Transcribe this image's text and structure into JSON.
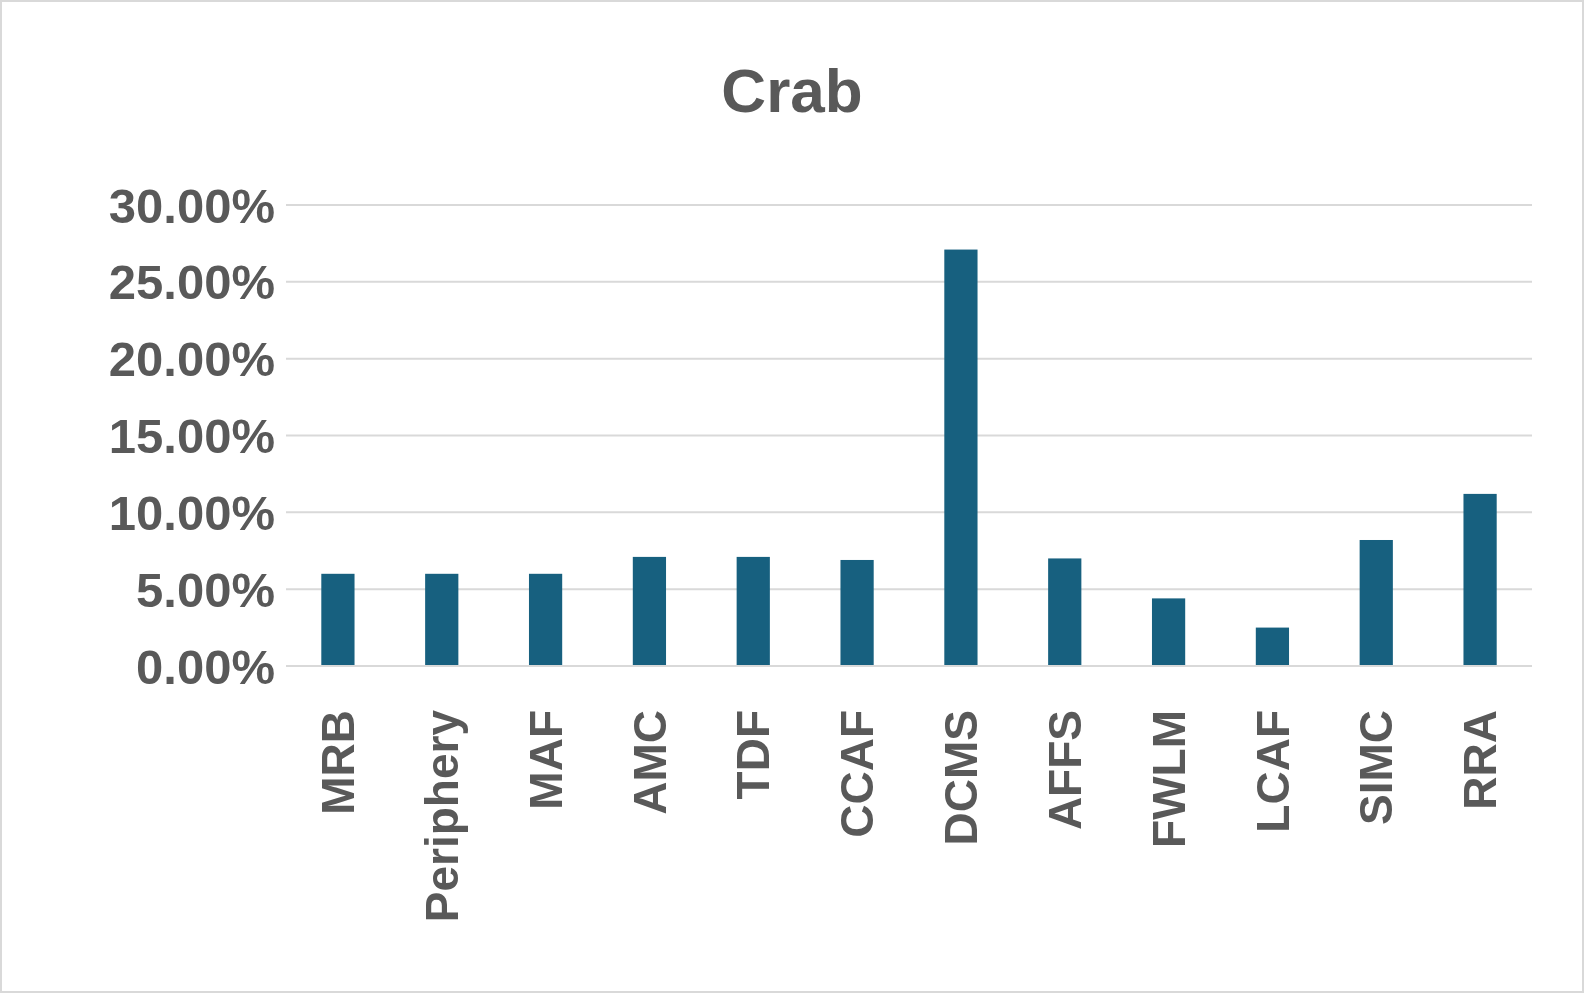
{
  "chart_data": {
    "type": "bar",
    "title": "Crab",
    "categories": [
      "MRB",
      "Periphery",
      "MAF",
      "AMC",
      "TDF",
      "CCAF",
      "DCMS",
      "AFFS",
      "FWLM",
      "LCAF",
      "SIMC",
      "RRA"
    ],
    "values": [
      6.0,
      6.0,
      6.0,
      7.1,
      7.1,
      6.9,
      27.1,
      7.0,
      4.4,
      2.5,
      8.2,
      11.2
    ],
    "color": "#17607f",
    "ylim": [
      0,
      30
    ],
    "yticks": [
      {
        "value": 0,
        "label": "0.00%"
      },
      {
        "value": 5,
        "label": "5.00%"
      },
      {
        "value": 10,
        "label": "10.00%"
      },
      {
        "value": 15,
        "label": "15.00%"
      },
      {
        "value": 20,
        "label": "20.00%"
      },
      {
        "value": 25,
        "label": "25.00%"
      },
      {
        "value": 30,
        "label": "30.00%"
      }
    ],
    "grid": "y"
  }
}
